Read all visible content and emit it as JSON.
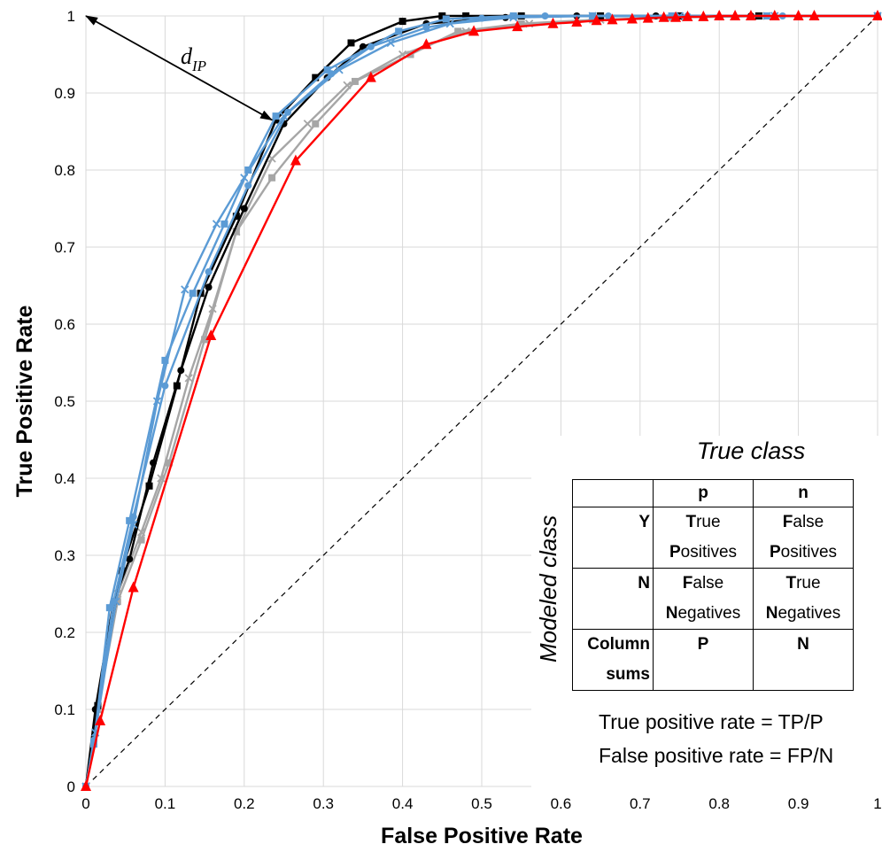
{
  "chart_data": {
    "type": "line",
    "xlabel": "False Positive Rate",
    "ylabel": "True Positive Rate",
    "xlim": [
      0,
      1
    ],
    "ylim": [
      0,
      1
    ],
    "x_ticks": [
      "0",
      "0.1",
      "0.2",
      "0.3",
      "0.4",
      "0.5",
      "0.6",
      "0.7",
      "0.8",
      "0.9",
      "1"
    ],
    "y_ticks": [
      "0",
      "0.1",
      "0.2",
      "0.3",
      "0.4",
      "0.5",
      "0.6",
      "0.7",
      "0.8",
      "0.9",
      "1"
    ],
    "grid": true,
    "series": [
      {
        "color": "#a6a6a6",
        "marker": "cross",
        "x": [
          0,
          0.015,
          0.04,
          0.07,
          0.095,
          0.13,
          0.16,
          0.19,
          0.235,
          0.28,
          0.33,
          0.4,
          0.48,
          0.56,
          0.65,
          0.75,
          0.86,
          1.0
        ],
        "y": [
          0,
          0.1,
          0.25,
          0.33,
          0.4,
          0.53,
          0.62,
          0.72,
          0.815,
          0.86,
          0.91,
          0.95,
          0.98,
          0.99,
          0.995,
          0.998,
          1.0,
          1.0
        ]
      },
      {
        "color": "#a6a6a6",
        "marker": "square",
        "x": [
          0,
          0.015,
          0.04,
          0.07,
          0.105,
          0.15,
          0.19,
          0.235,
          0.29,
          0.34,
          0.41,
          0.47,
          0.55,
          0.64,
          0.74,
          0.85,
          1.0
        ],
        "y": [
          0,
          0.1,
          0.24,
          0.32,
          0.42,
          0.58,
          0.72,
          0.79,
          0.86,
          0.915,
          0.95,
          0.98,
          0.99,
          0.995,
          0.998,
          1.0,
          1.0
        ]
      },
      {
        "color": "#000000",
        "marker": "circle",
        "x": [
          0,
          0.012,
          0.035,
          0.055,
          0.085,
          0.12,
          0.155,
          0.2,
          0.25,
          0.305,
          0.35,
          0.43,
          0.53,
          0.62,
          0.72,
          0.84,
          1.0
        ],
        "y": [
          0,
          0.1,
          0.24,
          0.295,
          0.42,
          0.54,
          0.648,
          0.75,
          0.86,
          0.92,
          0.96,
          0.99,
          0.998,
          1.0,
          1.0,
          1.0,
          1.0
        ]
      },
      {
        "color": "#000000",
        "marker": "square",
        "x": [
          0,
          0.015,
          0.045,
          0.08,
          0.115,
          0.145,
          0.19,
          0.24,
          0.29,
          0.335,
          0.4,
          0.45,
          0.48,
          0.55,
          0.65,
          0.75,
          0.85,
          1.0
        ],
        "y": [
          0,
          0.105,
          0.28,
          0.39,
          0.52,
          0.64,
          0.74,
          0.865,
          0.92,
          0.965,
          0.993,
          1.0,
          1.0,
          1.0,
          1.0,
          1.0,
          1.0,
          1.0
        ]
      },
      {
        "color": "#5b9bd5",
        "marker": "square",
        "x": [
          0,
          0.01,
          0.03,
          0.055,
          0.1,
          0.135,
          0.175,
          0.205,
          0.24,
          0.305,
          0.395,
          0.455,
          0.54,
          0.64,
          0.74,
          0.86,
          1.0
        ],
        "y": [
          0,
          0.055,
          0.232,
          0.345,
          0.553,
          0.64,
          0.73,
          0.8,
          0.87,
          0.93,
          0.98,
          0.996,
          1.0,
          1.0,
          1.0,
          1.0,
          1.0
        ]
      },
      {
        "color": "#5b9bd5",
        "marker": "circle",
        "x": [
          0,
          0.01,
          0.035,
          0.06,
          0.1,
          0.155,
          0.205,
          0.255,
          0.31,
          0.36,
          0.43,
          0.5,
          0.58,
          0.66,
          0.76,
          0.88,
          1.0
        ],
        "y": [
          0,
          0.06,
          0.24,
          0.35,
          0.52,
          0.668,
          0.78,
          0.875,
          0.925,
          0.96,
          0.985,
          0.997,
          1.0,
          1.0,
          1.0,
          1.0,
          1.0
        ]
      },
      {
        "color": "#5b9bd5",
        "marker": "cross",
        "x": [
          0,
          0.012,
          0.038,
          0.06,
          0.09,
          0.125,
          0.165,
          0.2,
          0.25,
          0.32,
          0.385,
          0.46,
          0.54,
          0.64,
          0.75,
          0.87,
          1.0
        ],
        "y": [
          0,
          0.07,
          0.24,
          0.34,
          0.5,
          0.645,
          0.73,
          0.79,
          0.87,
          0.93,
          0.965,
          0.99,
          0.998,
          1.0,
          1.0,
          1.0,
          1.0
        ]
      },
      {
        "color": "#ff0000",
        "marker": "triangle",
        "x": [
          0,
          0.018,
          0.06,
          0.158,
          0.265,
          0.36,
          0.43,
          0.49,
          0.545,
          0.59,
          0.62,
          0.645,
          0.665,
          0.69,
          0.71,
          0.73,
          0.745,
          0.76,
          0.78,
          0.8,
          0.82,
          0.84,
          0.87,
          0.9,
          0.92,
          1.0
        ],
        "y": [
          0,
          0.085,
          0.258,
          0.585,
          0.812,
          0.92,
          0.963,
          0.98,
          0.986,
          0.99,
          0.992,
          0.994,
          0.995,
          0.996,
          0.997,
          0.998,
          0.998,
          0.999,
          0.999,
          1.0,
          1.0,
          1.0,
          1.0,
          1.0,
          1.0,
          1.0
        ]
      }
    ],
    "diagonal": {
      "x": [
        0,
        1
      ],
      "y": [
        0,
        1
      ],
      "style": "dashed",
      "color": "#000000"
    },
    "annotation": {
      "label_main": "d",
      "label_sub": "IP",
      "from": [
        0,
        1
      ],
      "to": [
        0.235,
        0.865
      ]
    }
  },
  "inset": {
    "true_class_title": "True class",
    "modeled_class_title": "Modeled class",
    "col_p": "p",
    "col_n": "n",
    "row_y": "Y",
    "row_n": "N",
    "row_sums_1": "Column",
    "row_sums_2": "sums",
    "tp_1_cap": "T",
    "tp_1_rest": "rue",
    "tp_2_cap": "P",
    "tp_2_rest": "ositives",
    "fp_1_cap": "F",
    "fp_1_rest": "alse",
    "fp_2_cap": "P",
    "fp_2_rest": "ositives",
    "fn_1_cap": "F",
    "fn_1_rest": "alse",
    "fn_2_cap": "N",
    "fn_2_rest": "egatives",
    "tn_1_cap": "T",
    "tn_1_rest": "rue",
    "tn_2_cap": "N",
    "tn_2_rest": "egatives",
    "sum_p": "P",
    "sum_n": "N",
    "formula_tpr": "True positive rate = TP/P",
    "formula_fpr": "False positive rate = FP/N"
  }
}
